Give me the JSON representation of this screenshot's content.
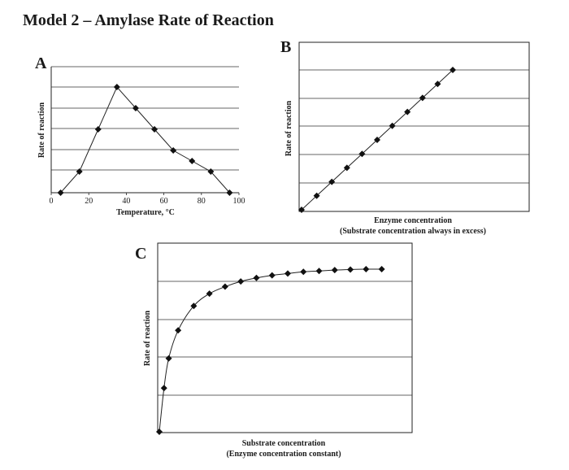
{
  "page_title": "Model 2 – Amylase Rate of Reaction",
  "chart_data": [
    {
      "panel": "A",
      "type": "line",
      "xlabel": "Temperature, °C",
      "ylabel": "Rate of reaction",
      "xticks": [
        "0",
        "20",
        "40",
        "60",
        "80",
        "100"
      ],
      "xlim": [
        0,
        100
      ],
      "ylim": [
        0,
        5
      ],
      "grid": true,
      "x": [
        5,
        15,
        25,
        35,
        45,
        55,
        65,
        75,
        85,
        95
      ],
      "y": [
        0,
        1,
        3,
        5,
        4,
        3,
        2,
        1.5,
        1,
        0
      ]
    },
    {
      "panel": "B",
      "type": "line",
      "xlabel": "Enzyme concentration",
      "xlabel2": "(Substrate concentration always in excess)",
      "ylabel": "Rate of reaction",
      "xlim": [
        0,
        10
      ],
      "ylim": [
        0,
        10
      ],
      "grid": true,
      "x": [
        0,
        1,
        2,
        3,
        4,
        5,
        6,
        7,
        8,
        9,
        10
      ],
      "y": [
        0,
        1,
        2,
        3,
        4,
        5,
        6,
        7,
        8,
        9,
        10
      ]
    },
    {
      "panel": "C",
      "type": "line",
      "xlabel": "Substrate concentration",
      "xlabel2": "(Enzyme concentration constant)",
      "ylabel": "Rate of reaction",
      "xlim": [
        0,
        15
      ],
      "ylim": [
        0,
        10
      ],
      "grid": true,
      "x": [
        0,
        0.3,
        0.6,
        1.2,
        2.2,
        3.2,
        4.2,
        5.2,
        6.2,
        7.2,
        8.2,
        9.2,
        10.2,
        11.2,
        12.2,
        13.2,
        14.2
      ],
      "y": [
        0,
        2.5,
        4.2,
        5.8,
        7.2,
        7.9,
        8.3,
        8.6,
        8.8,
        8.95,
        9.05,
        9.15,
        9.2,
        9.25,
        9.28,
        9.3,
        9.3
      ]
    }
  ]
}
